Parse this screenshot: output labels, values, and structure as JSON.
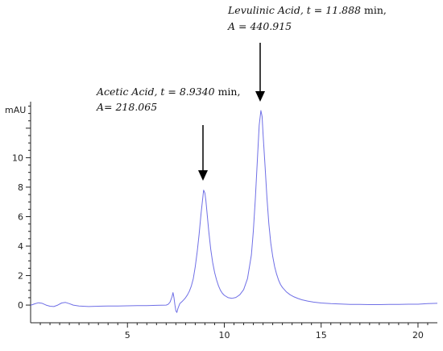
{
  "chart_data": {
    "type": "line",
    "ylabel": "mAU",
    "xlabel": "",
    "xlim": [
      0,
      21
    ],
    "ylim": [
      -1.2,
      13.8
    ],
    "x_ticks": [
      5,
      10,
      15,
      20
    ],
    "y_ticks": [
      0,
      2,
      4,
      6,
      8,
      10
    ],
    "grid": false,
    "series_color": "#6f6fe6",
    "axis_color": "#222222",
    "peaks": [
      {
        "compound": "Acetic Acid",
        "t": "8.9340",
        "area": "218.065",
        "x": 8.934,
        "height": 7.8
      },
      {
        "compound": "Levulinic Acid",
        "t": "11.888",
        "area": "440.915",
        "x": 11.888,
        "height": 13.2
      }
    ],
    "annotations": [
      {
        "line1_a": "Acetic Acid, t = 8.9340 ",
        "line1_b": "min,",
        "line2": "A= 218.065"
      },
      {
        "line1_a": "Levulinic Acid, t = 11.888 ",
        "line1_b": "min,",
        "line2": "A = 440.915"
      }
    ],
    "trace": {
      "x": [
        0,
        0.2,
        0.4,
        0.6,
        0.8,
        1.0,
        1.2,
        1.4,
        1.6,
        1.8,
        2.0,
        2.2,
        2.5,
        3.0,
        3.5,
        4.0,
        4.5,
        5.0,
        5.5,
        6.0,
        6.5,
        7.0,
        7.1,
        7.2,
        7.3,
        7.35,
        7.4,
        7.45,
        7.5,
        7.55,
        7.6,
        7.7,
        7.8,
        7.9,
        8.0,
        8.1,
        8.2,
        8.3,
        8.4,
        8.5,
        8.6,
        8.7,
        8.8,
        8.9,
        8.934,
        9.0,
        9.05,
        9.1,
        9.2,
        9.3,
        9.4,
        9.5,
        9.6,
        9.7,
        9.8,
        9.9,
        10.0,
        10.2,
        10.4,
        10.6,
        10.8,
        11.0,
        11.2,
        11.4,
        11.5,
        11.6,
        11.7,
        11.8,
        11.888,
        11.95,
        12.0,
        12.1,
        12.2,
        12.3,
        12.4,
        12.5,
        12.6,
        12.7,
        12.8,
        12.9,
        13.0,
        13.2,
        13.4,
        13.6,
        13.8,
        14.0,
        14.3,
        14.6,
        15.0,
        15.5,
        16.0,
        16.5,
        17.0,
        17.5,
        18.0,
        18.5,
        19.0,
        19.5,
        20.0,
        20.5,
        21.0
      ],
      "y": [
        -0.02,
        0.08,
        0.16,
        0.12,
        0.0,
        -0.08,
        -0.1,
        0.0,
        0.14,
        0.18,
        0.1,
        0.0,
        -0.06,
        -0.1,
        -0.08,
        -0.06,
        -0.06,
        -0.05,
        -0.04,
        -0.04,
        -0.02,
        0.0,
        0.05,
        0.2,
        0.55,
        0.85,
        0.5,
        0.0,
        -0.4,
        -0.5,
        -0.25,
        0.1,
        0.22,
        0.35,
        0.5,
        0.7,
        0.95,
        1.3,
        1.8,
        2.6,
        3.6,
        4.8,
        6.2,
        7.4,
        7.8,
        7.6,
        7.1,
        6.4,
        5.0,
        3.8,
        2.9,
        2.2,
        1.7,
        1.3,
        1.0,
        0.8,
        0.66,
        0.5,
        0.46,
        0.52,
        0.7,
        1.05,
        1.8,
        3.4,
        5.0,
        7.2,
        9.7,
        12.2,
        13.2,
        12.8,
        11.6,
        9.5,
        7.3,
        5.5,
        4.2,
        3.3,
        2.6,
        2.1,
        1.7,
        1.4,
        1.2,
        0.9,
        0.7,
        0.56,
        0.45,
        0.36,
        0.27,
        0.2,
        0.14,
        0.1,
        0.07,
        0.05,
        0.04,
        0.03,
        0.03,
        0.04,
        0.05,
        0.06,
        0.06,
        0.1,
        0.12
      ]
    }
  }
}
